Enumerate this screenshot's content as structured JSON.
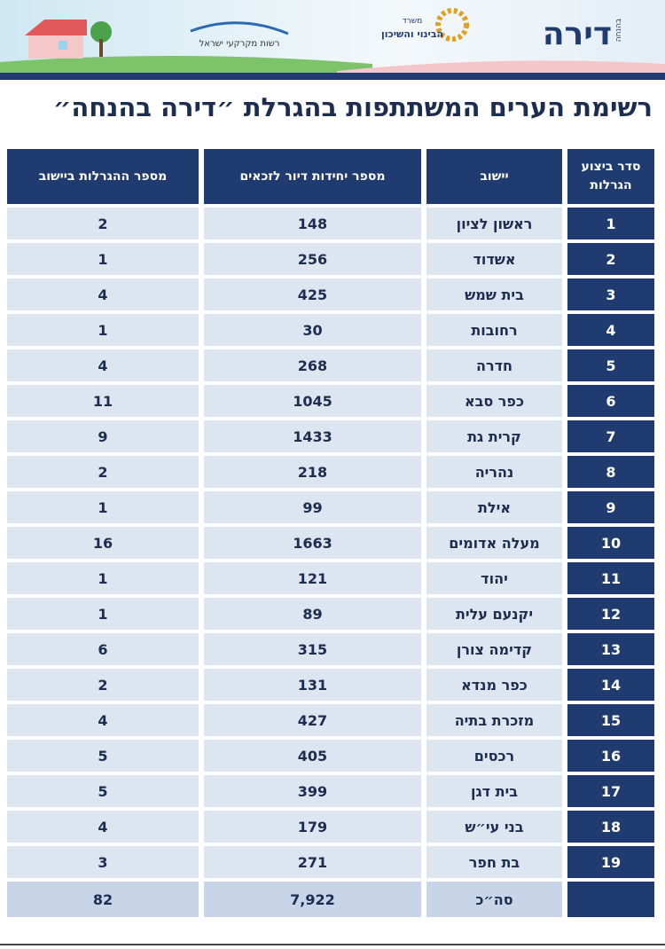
{
  "header": {
    "logo_main": "דירה",
    "logo_sub": "בהנחה",
    "ministry_small": "משרד",
    "ministry": "הבינוי והשיכון",
    "authority": "רשות מקרקעי ישראל"
  },
  "title": "רשימת הערים המשתתפות בהגרלת ״דירה בהנחה״",
  "table": {
    "columns": [
      "סדר ביצוע הגרלות",
      "יישוב",
      "מספר יחידות דיור לזכאים",
      "מספר ההגרלות ביישוב"
    ],
    "rows": [
      [
        1,
        "ראשון לציון",
        148,
        2
      ],
      [
        2,
        "אשדוד",
        256,
        1
      ],
      [
        3,
        "בית שמש",
        425,
        4
      ],
      [
        4,
        "רחובות",
        30,
        1
      ],
      [
        5,
        "חדרה",
        268,
        4
      ],
      [
        6,
        "כפר סבא",
        1045,
        11
      ],
      [
        7,
        "קרית גת",
        1433,
        9
      ],
      [
        8,
        "נהריה",
        218,
        2
      ],
      [
        9,
        "אילת",
        99,
        1
      ],
      [
        10,
        "מעלה אדומים",
        1663,
        16
      ],
      [
        11,
        "יהוד",
        121,
        1
      ],
      [
        12,
        "יקנעם עלית",
        89,
        1
      ],
      [
        13,
        "קדימה צורן",
        315,
        6
      ],
      [
        14,
        "כפר מנדא",
        131,
        2
      ],
      [
        15,
        "מזכרת בתיה",
        427,
        4
      ],
      [
        16,
        "רכסים",
        405,
        5
      ],
      [
        17,
        "בית דגן",
        399,
        5
      ],
      [
        18,
        "בני עי״ש",
        179,
        4
      ],
      [
        19,
        "בת חפר",
        271,
        3
      ]
    ],
    "total": {
      "label": "סה״כ",
      "units": "7,922",
      "lotteries": 82
    }
  }
}
